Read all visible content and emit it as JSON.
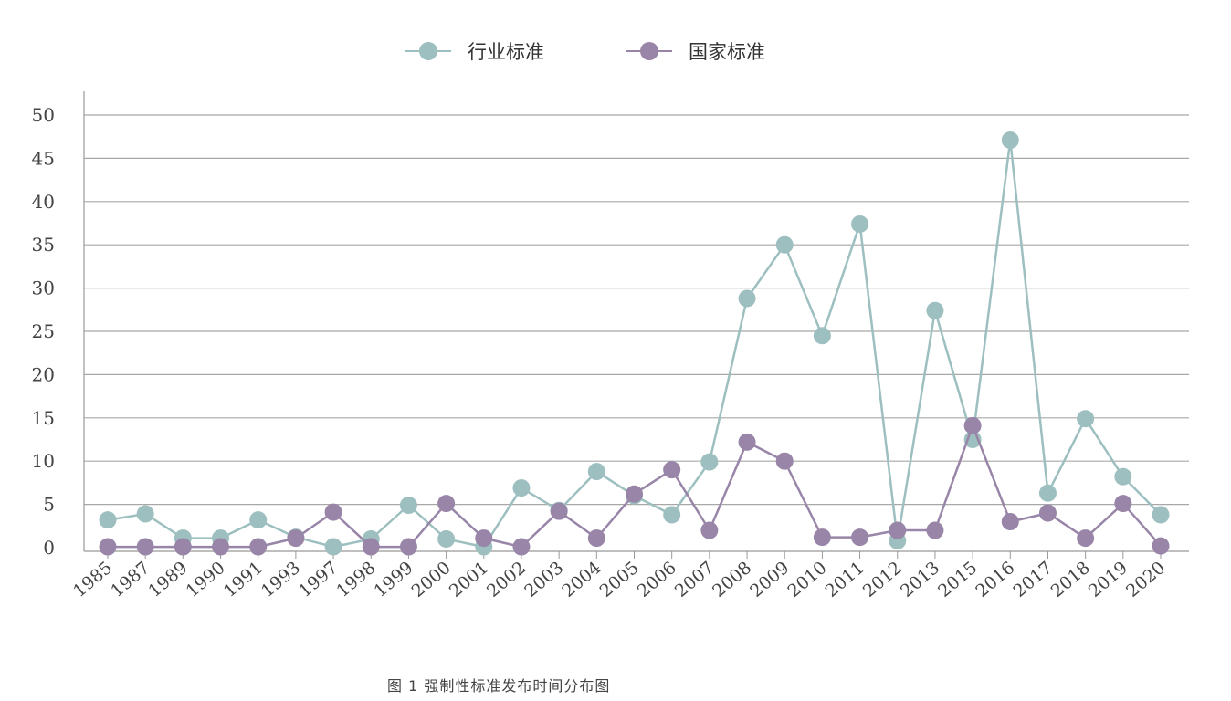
{
  "chart_data": {
    "type": "line",
    "title": "",
    "xlabel": "",
    "ylabel": "",
    "ylim": [
      0,
      50
    ],
    "yticks": [
      0,
      5,
      10,
      15,
      20,
      25,
      30,
      35,
      40,
      45,
      50
    ],
    "grid": true,
    "legend_position": "top-center",
    "categories": [
      "1985",
      "1987",
      "1989",
      "1990",
      "1991",
      "1993",
      "1997",
      "1998",
      "1999",
      "2000",
      "2001",
      "2002",
      "2003",
      "2004",
      "2005",
      "2006",
      "2007",
      "2008",
      "2009",
      "2010",
      "2011",
      "2012",
      "2013",
      "2015",
      "2016",
      "2017",
      "2018",
      "2019",
      "2020"
    ],
    "series": [
      {
        "name": "行业标准",
        "color": "#9dbfbf",
        "values": [
          3.2,
          3.9,
          1.1,
          1.1,
          3.2,
          1.2,
          0.1,
          1.0,
          4.9,
          1.0,
          0.1,
          6.9,
          4.3,
          8.8,
          6.0,
          3.8,
          9.9,
          28.8,
          35.0,
          24.5,
          37.4,
          0.8,
          27.4,
          12.5,
          47.1,
          6.3,
          14.9,
          8.2,
          3.8
        ]
      },
      {
        "name": "国家标准",
        "color": "#9885a8",
        "values": [
          0.1,
          0.1,
          0.1,
          0.1,
          0.1,
          1.1,
          4.1,
          0.1,
          0.1,
          5.1,
          1.1,
          0.1,
          4.2,
          1.1,
          6.2,
          9.0,
          2.0,
          12.2,
          10.0,
          1.2,
          1.2,
          2.0,
          2.0,
          14.1,
          3.0,
          4.0,
          1.1,
          5.1,
          0.2
        ]
      }
    ]
  },
  "legend": {
    "items": [
      {
        "label": "行业标准",
        "color": "#9dbfbf"
      },
      {
        "label": "国家标准",
        "color": "#9885a8"
      }
    ]
  },
  "caption": "图 1    强制性标准发布时间分布图"
}
